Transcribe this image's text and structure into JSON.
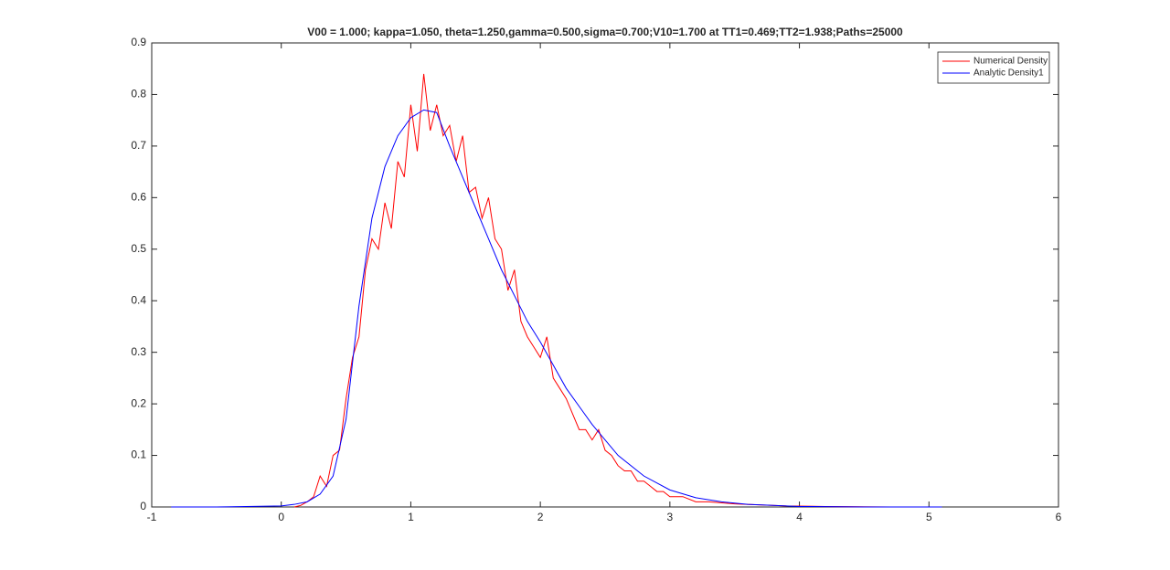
{
  "chart_data": {
    "type": "line",
    "title": "V00 = 1.000; kappa=1.050, theta=1.250,gamma=0.500,sigma=0.700;V10=1.700 at TT1=0.469;TT2=1.938;Paths=25000",
    "xlim": [
      -1,
      6
    ],
    "xticks": [
      -1,
      0,
      1,
      2,
      3,
      4,
      5,
      6
    ],
    "ylim": [
      0,
      0.9
    ],
    "yticks": [
      0,
      0.1,
      0.2,
      0.3,
      0.4,
      0.5,
      0.6,
      0.7,
      0.8,
      0.9
    ],
    "legend": "northeast",
    "grid": false,
    "series": [
      {
        "name": "Numerical Density",
        "color": "#ff0000",
        "x": [
          0.1,
          0.15,
          0.2,
          0.25,
          0.3,
          0.35,
          0.4,
          0.45,
          0.5,
          0.55,
          0.6,
          0.65,
          0.7,
          0.75,
          0.8,
          0.85,
          0.9,
          0.95,
          1.0,
          1.05,
          1.1,
          1.15,
          1.2,
          1.25,
          1.3,
          1.35,
          1.4,
          1.45,
          1.5,
          1.55,
          1.6,
          1.65,
          1.7,
          1.75,
          1.8,
          1.85,
          1.9,
          1.95,
          2.0,
          2.05,
          2.1,
          2.15,
          2.2,
          2.25,
          2.3,
          2.35,
          2.4,
          2.45,
          2.5,
          2.55,
          2.6,
          2.65,
          2.7,
          2.75,
          2.8,
          2.85,
          2.9,
          2.95,
          3.0,
          3.1,
          3.2,
          3.3,
          3.4,
          3.5,
          3.7,
          3.9,
          4.2,
          4.7
        ],
        "values": [
          0.0,
          0.003,
          0.01,
          0.02,
          0.06,
          0.04,
          0.1,
          0.11,
          0.21,
          0.29,
          0.33,
          0.46,
          0.52,
          0.5,
          0.59,
          0.54,
          0.67,
          0.64,
          0.78,
          0.69,
          0.84,
          0.73,
          0.78,
          0.72,
          0.74,
          0.67,
          0.72,
          0.61,
          0.62,
          0.56,
          0.6,
          0.52,
          0.5,
          0.42,
          0.46,
          0.36,
          0.33,
          0.31,
          0.29,
          0.33,
          0.25,
          0.23,
          0.21,
          0.18,
          0.15,
          0.15,
          0.13,
          0.15,
          0.11,
          0.1,
          0.08,
          0.07,
          0.07,
          0.05,
          0.05,
          0.04,
          0.03,
          0.03,
          0.02,
          0.02,
          0.01,
          0.01,
          0.008,
          0.006,
          0.004,
          0.002,
          0.001,
          0.0
        ]
      },
      {
        "name": "Analytic Density1",
        "color": "#0000ff",
        "x": [
          -0.85,
          -0.5,
          0,
          0.1,
          0.2,
          0.3,
          0.4,
          0.5,
          0.6,
          0.7,
          0.8,
          0.9,
          1.0,
          1.1,
          1.2,
          1.3,
          1.4,
          1.5,
          1.6,
          1.7,
          1.8,
          1.9,
          2.0,
          2.2,
          2.4,
          2.6,
          2.8,
          3.0,
          3.2,
          3.4,
          3.6,
          3.8,
          4.0,
          4.5,
          5.1
        ],
        "values": [
          0,
          0,
          0.002,
          0.005,
          0.01,
          0.025,
          0.06,
          0.17,
          0.39,
          0.56,
          0.66,
          0.72,
          0.755,
          0.77,
          0.765,
          0.7,
          0.64,
          0.58,
          0.52,
          0.46,
          0.41,
          0.36,
          0.32,
          0.23,
          0.16,
          0.1,
          0.06,
          0.033,
          0.018,
          0.01,
          0.005,
          0.003,
          0.001,
          0,
          0
        ]
      }
    ]
  }
}
